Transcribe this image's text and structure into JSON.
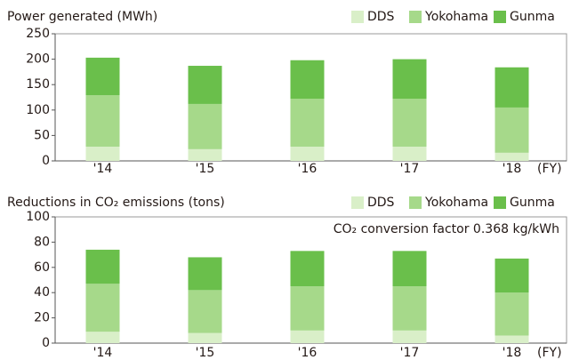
{
  "chart_data": [
    {
      "type": "bar",
      "stacked": true,
      "title": "Power generated (MWh)",
      "xlabel": "(FY)",
      "categories": [
        "'14",
        "'15",
        "'16",
        "'17",
        "'18"
      ],
      "series": [
        {
          "name": "DDS",
          "color": "#d9efc8",
          "values": [
            28,
            23,
            28,
            28,
            16
          ]
        },
        {
          "name": "Yokohama",
          "color": "#a6d98a",
          "values": [
            101,
            89,
            94,
            94,
            89
          ]
        },
        {
          "name": "Gunma",
          "color": "#6abf4b",
          "values": [
            74,
            75,
            76,
            78,
            79
          ]
        }
      ],
      "ylim": [
        0,
        250
      ],
      "yticks": [
        0,
        50,
        100,
        150,
        200,
        250
      ]
    },
    {
      "type": "bar",
      "stacked": true,
      "title": "Reductions in CO₂ emissions (tons)",
      "xlabel": "(FY)",
      "annotation": "CO₂ conversion factor 0.368 kg/kWh",
      "categories": [
        "'14",
        "'15",
        "'16",
        "'17",
        "'18"
      ],
      "series": [
        {
          "name": "DDS",
          "color": "#d9efc8",
          "values": [
            9,
            8,
            10,
            10,
            6
          ]
        },
        {
          "name": "Yokohama",
          "color": "#a6d98a",
          "values": [
            38,
            34,
            35,
            35,
            34
          ]
        },
        {
          "name": "Gunma",
          "color": "#6abf4b",
          "values": [
            27,
            26,
            28,
            28,
            27
          ]
        }
      ],
      "ylim": [
        0,
        100
      ],
      "yticks": [
        0,
        20,
        40,
        60,
        80,
        100
      ]
    }
  ]
}
